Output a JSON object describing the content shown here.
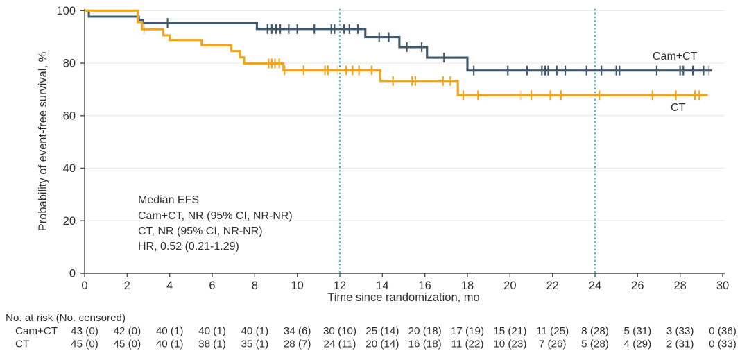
{
  "chart_data": {
    "type": "line",
    "subtype": "kaplan-meier-step",
    "title": "",
    "xlabel": "Time since randomization, mo",
    "ylabel": "Probability of event-free survival, %",
    "xlim": [
      0,
      30
    ],
    "ylim": [
      0,
      100
    ],
    "x_ticks": [
      0,
      2,
      4,
      6,
      8,
      10,
      12,
      14,
      16,
      18,
      20,
      22,
      24,
      26,
      28,
      30
    ],
    "y_ticks": [
      0,
      20,
      40,
      60,
      80,
      100
    ],
    "grid": "horizontal",
    "legend_position": "curve-end-labels",
    "reference_lines_x": [
      12,
      24
    ],
    "reference_line_color": "#3db5e6",
    "annotation": {
      "lines": [
        "Median EFS",
        "Cam+CT, NR (95% CI, NR-NR)",
        "CT, NR (95% CI, NR-NR)",
        "HR, 0.52 (0.21-1.29)"
      ]
    },
    "series": [
      {
        "name": "Cam+CT",
        "color": "#40586c",
        "steps": [
          [
            0,
            100
          ],
          [
            0.2,
            97.7
          ],
          [
            2.55,
            96.5
          ],
          [
            2.75,
            95.3
          ],
          [
            8.1,
            93.0
          ],
          [
            13.2,
            89.9
          ],
          [
            14.8,
            86.1
          ],
          [
            16.1,
            82.1
          ],
          [
            18,
            77.2
          ]
        ],
        "end_time": 29.5,
        "censor_times": [
          3.9,
          8.6,
          8.8,
          9.0,
          9.2,
          9.6,
          10.0,
          10.8,
          11.6,
          11.75,
          12.2,
          12.45,
          12.85,
          13.85,
          14.3,
          15.15,
          15.85,
          16.9,
          18.3,
          19.9,
          20.8,
          21.5,
          21.65,
          21.8,
          22.2,
          22.6,
          23.6,
          24.3,
          25.0,
          25.15,
          26.9,
          28.0,
          28.15,
          28.6,
          29.1
        ],
        "censor_times_light": [
          29.35
        ]
      },
      {
        "name": "CT",
        "color": "#f2a41c",
        "steps": [
          [
            0,
            100
          ],
          [
            2.5,
            95.6
          ],
          [
            2.7,
            92.9
          ],
          [
            3.7,
            90.6
          ],
          [
            4.0,
            88.8
          ],
          [
            5.5,
            86.8
          ],
          [
            6.9,
            84.6
          ],
          [
            7.3,
            82.2
          ],
          [
            7.5,
            79.9
          ],
          [
            9.35,
            77.3
          ],
          [
            13.9,
            73.2
          ],
          [
            17.55,
            67.8
          ]
        ],
        "end_time": 29.3,
        "censor_times": [
          8.65,
          8.8,
          8.95,
          9.15,
          9.4,
          10.3,
          11.3,
          11.45,
          12.3,
          12.6,
          12.9,
          13.5,
          14.5,
          15.4,
          15.55,
          16.85,
          17.2,
          17.8,
          18.5,
          21.0,
          21.9,
          22.4,
          24.2,
          26.7,
          27.8,
          28.7,
          28.9
        ],
        "censor_times_light": [
          2.8,
          11.9,
          20.5
        ]
      }
    ],
    "risk_table": {
      "header": "No. at risk (No. censored)",
      "time_points": [
        0,
        2,
        4,
        6,
        8,
        10,
        12,
        14,
        16,
        18,
        20,
        22,
        24,
        26,
        28,
        30
      ],
      "rows": [
        {
          "label": "Cam+CT",
          "values": [
            "43 (0)",
            "42 (0)",
            "40 (1)",
            "40 (1)",
            "40 (1)",
            "34 (6)",
            "30 (10)",
            "25 (14)",
            "20 (18)",
            "17 (19)",
            "15 (21)",
            "11 (25)",
            "8 (28)",
            "5 (31)",
            "3 (33)",
            "0 (36)"
          ]
        },
        {
          "label": "CT",
          "values": [
            "45 (0)",
            "45 (0)",
            "40 (1)",
            "38 (1)",
            "35 (1)",
            "28 (7)",
            "24 (11)",
            "20 (14)",
            "16 (18)",
            "11 (22)",
            "10 (23)",
            "7 (26)",
            "5 (28)",
            "4 (29)",
            "2 (31)",
            "0 (33)"
          ]
        }
      ]
    },
    "colors": {
      "axis": "#4a4a4a",
      "grid": "#e9e9e9",
      "text": "#2f2f2f"
    }
  }
}
